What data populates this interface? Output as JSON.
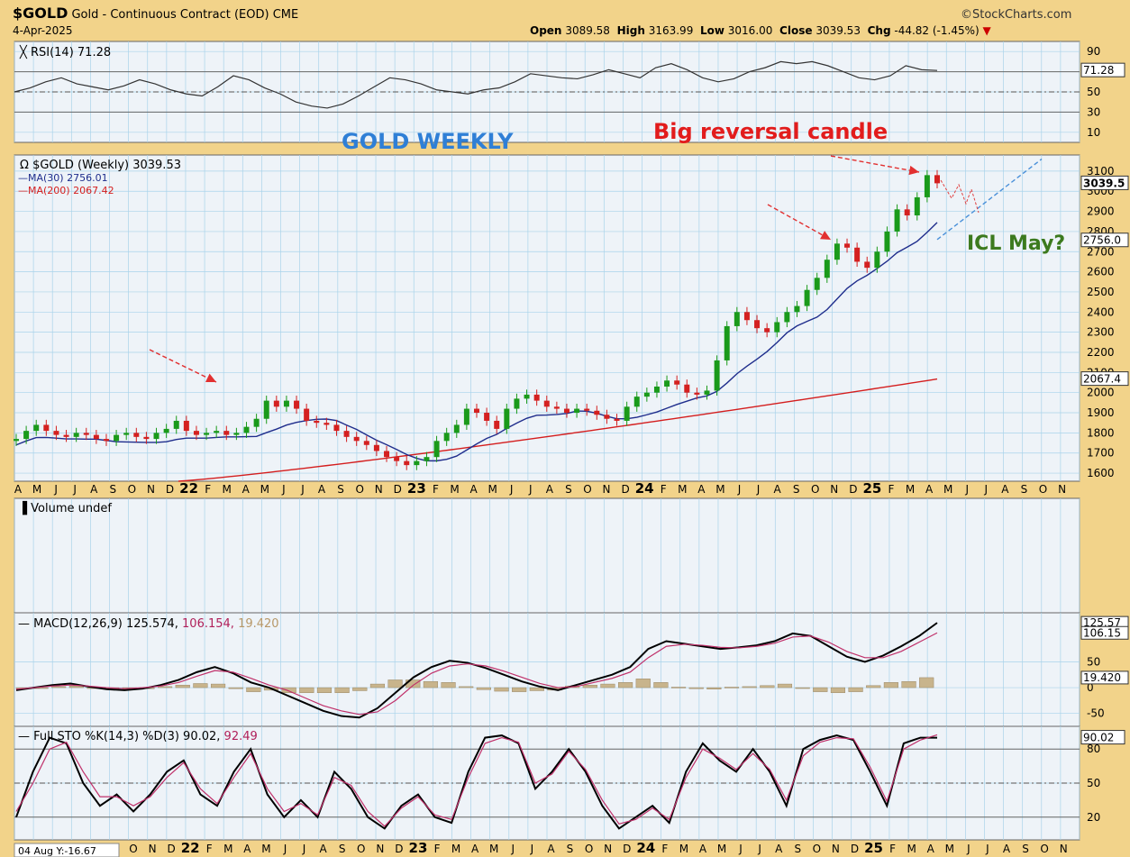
{
  "header": {
    "symbol": "$GOLD",
    "name": "Gold - Continuous Contract (EOD)",
    "exchange": "CME",
    "date": "4-Apr-2025",
    "brand": "©StockCharts.com",
    "ohlc": {
      "open_label": "Open",
      "open": "3089.58",
      "high_label": "High",
      "high": "3163.99",
      "low_label": "Low",
      "low": "3016.00",
      "close_label": "Close",
      "close": "3039.53",
      "chg_label": "Chg",
      "chg": "-44.82 (-1.45%)"
    }
  },
  "colors": {
    "background": "#f2d38a",
    "panel": "#eef3f8",
    "grid": "#a9d3ea",
    "price_up": "#1a9a1a",
    "price_down": "#d42020",
    "ma30": "#1f2d8c",
    "ma200": "#d41e1e",
    "trend": "#4a90d9",
    "annotation_blue": "#2f7fd6",
    "annotation_red": "#e21c1c",
    "annotation_green": "#3c7a1e",
    "histogram": "#c8b48c"
  },
  "annotations": {
    "gold_weekly": "GOLD WEEKLY",
    "big_reversal": "Big reversal candle",
    "icl_may": "ICL May?"
  },
  "x_axis": {
    "top_labels": [
      "A",
      "M",
      "J",
      "J",
      "A",
      "S",
      "O",
      "N",
      "D",
      "22",
      "F",
      "M",
      "A",
      "M",
      "J",
      "J",
      "A",
      "S",
      "O",
      "N",
      "D",
      "23",
      "F",
      "M",
      "A",
      "M",
      "J",
      "J",
      "A",
      "S",
      "O",
      "N",
      "D",
      "24",
      "F",
      "M",
      "A",
      "M",
      "J",
      "J",
      "A",
      "S",
      "O",
      "N",
      "D",
      "25",
      "F",
      "M",
      "A",
      "M",
      "J",
      "J",
      "A",
      "S",
      "O",
      "N"
    ],
    "bottom_labels": [
      "O",
      "N",
      "D",
      "22",
      "F",
      "M",
      "A",
      "M",
      "J",
      "J",
      "A",
      "S",
      "O",
      "N",
      "D",
      "23",
      "F",
      "M",
      "A",
      "M",
      "J",
      "J",
      "A",
      "S",
      "O",
      "N",
      "D",
      "24",
      "F",
      "M",
      "A",
      "M",
      "J",
      "J",
      "A",
      "S",
      "O",
      "N",
      "D",
      "25",
      "F",
      "M",
      "A",
      "M",
      "J",
      "J",
      "A",
      "S",
      "O",
      "N"
    ],
    "status": "04 Aug Y:-16.67"
  },
  "chart_data": [
    {
      "type": "line",
      "panel": "RSI",
      "title": "RSI(14) 71.28",
      "y_ticks": [
        90,
        50,
        30,
        10
      ],
      "ylim": [
        0,
        100
      ],
      "last_label": "71.28",
      "reference_lines": [
        70,
        30
      ],
      "series": [
        {
          "name": "RSI(14)",
          "values": [
            50,
            54,
            60,
            64,
            58,
            55,
            52,
            56,
            62,
            58,
            52,
            48,
            46,
            55,
            66,
            62,
            54,
            48,
            40,
            36,
            34,
            38,
            46,
            55,
            64,
            62,
            58,
            52,
            50,
            48,
            52,
            54,
            60,
            68,
            66,
            64,
            63,
            67,
            72,
            68,
            64,
            74,
            78,
            72,
            64,
            60,
            63,
            70,
            74,
            80,
            78,
            80,
            76,
            70,
            64,
            62,
            66,
            76,
            72,
            71.28
          ]
        }
      ]
    },
    {
      "type": "candlestick",
      "panel": "Price",
      "title": "$GOLD (Weekly) 3039.53",
      "legend": [
        "MA(30) 2756.01",
        "MA(200) 2067.42"
      ],
      "y_ticks": [
        3100,
        3000,
        2900,
        2800,
        2700,
        2600,
        2500,
        2400,
        2300,
        2200,
        2100,
        2000,
        1900,
        1800,
        1700,
        1600
      ],
      "ylim": [
        1560,
        3180
      ],
      "last_labels": [
        "3039.5",
        "2756.0",
        "2067.4"
      ],
      "close": [
        1770,
        1810,
        1840,
        1810,
        1790,
        1780,
        1800,
        1790,
        1770,
        1760,
        1790,
        1800,
        1780,
        1770,
        1800,
        1820,
        1860,
        1810,
        1790,
        1800,
        1810,
        1790,
        1800,
        1830,
        1870,
        1960,
        1930,
        1960,
        1920,
        1860,
        1850,
        1840,
        1810,
        1780,
        1760,
        1740,
        1710,
        1680,
        1660,
        1640,
        1660,
        1680,
        1760,
        1800,
        1840,
        1920,
        1900,
        1860,
        1820,
        1920,
        1970,
        1990,
        1960,
        1930,
        1920,
        1900,
        1920,
        1910,
        1890,
        1870,
        1860,
        1930,
        1980,
        2000,
        2030,
        2060,
        2040,
        2000,
        1990,
        2010,
        2160,
        2330,
        2400,
        2360,
        2320,
        2300,
        2350,
        2400,
        2430,
        2510,
        2570,
        2660,
        2740,
        2720,
        2650,
        2620,
        2700,
        2800,
        2910,
        2880,
        2970,
        3080,
        3039.53
      ],
      "series": [
        {
          "name": "MA(30)",
          "last": 2756.01
        },
        {
          "name": "MA(200)",
          "last": 2067.42
        }
      ]
    },
    {
      "type": "bar",
      "panel": "Volume",
      "title": "Volume undef",
      "values": []
    },
    {
      "type": "line",
      "panel": "MACD",
      "title": "MACD(12,26,9)",
      "values_text": {
        "macd": "125.574",
        "signal": "106.154",
        "histogram": "19.420"
      },
      "y_ticks": [
        50,
        0,
        -50
      ],
      "ylim": [
        -75,
        145
      ],
      "last_labels": [
        "125.57",
        "106.15",
        "19.420"
      ],
      "series": [
        {
          "name": "MACD",
          "values": [
            -5,
            0,
            5,
            8,
            2,
            -3,
            -5,
            -2,
            5,
            15,
            30,
            40,
            28,
            10,
            0,
            -15,
            -30,
            -45,
            -55,
            -58,
            -40,
            -10,
            20,
            40,
            52,
            48,
            38,
            25,
            12,
            2,
            -5,
            5,
            15,
            25,
            40,
            75,
            90,
            85,
            80,
            75,
            78,
            82,
            90,
            105,
            100,
            80,
            60,
            50,
            62,
            80,
            100,
            125.574
          ]
        },
        {
          "name": "Signal",
          "values": [
            -3,
            0,
            3,
            5,
            3,
            0,
            -2,
            0,
            3,
            10,
            22,
            33,
            30,
            18,
            5,
            -5,
            -20,
            -35,
            -45,
            -52,
            -47,
            -25,
            5,
            28,
            42,
            46,
            42,
            32,
            20,
            8,
            0,
            2,
            10,
            18,
            30,
            58,
            80,
            84,
            82,
            78,
            77,
            80,
            86,
            98,
            100,
            88,
            70,
            58,
            58,
            70,
            88,
            106.154
          ]
        }
      ],
      "histogram": [
        -2,
        0,
        2,
        3,
        -1,
        -3,
        -3,
        -2,
        2,
        5,
        8,
        7,
        -2,
        -8,
        -5,
        -10,
        -10,
        -10,
        -10,
        -6,
        7,
        15,
        15,
        12,
        10,
        2,
        -4,
        -7,
        -8,
        -6,
        -5,
        3,
        5,
        7,
        10,
        17,
        10,
        1,
        -2,
        -3,
        1,
        2,
        4,
        7,
        0,
        -8,
        -10,
        -8,
        4,
        10,
        12,
        19.42
      ]
    },
    {
      "type": "line",
      "panel": "Stochastic",
      "title": "Full STO %K(14,3) %D(3)",
      "values_text": {
        "k": "90.02",
        "d": "92.49"
      },
      "y_ticks": [
        80,
        50,
        20
      ],
      "ylim": [
        0,
        100
      ],
      "last_label": "90.02",
      "series": [
        {
          "name": "%K",
          "values": [
            20,
            60,
            90,
            85,
            50,
            30,
            40,
            25,
            40,
            60,
            70,
            40,
            30,
            60,
            80,
            40,
            20,
            35,
            20,
            60,
            45,
            20,
            10,
            30,
            40,
            20,
            15,
            60,
            90,
            92,
            85,
            45,
            60,
            80,
            60,
            30,
            10,
            20,
            30,
            15,
            60,
            85,
            70,
            60,
            80,
            60,
            30,
            80,
            88,
            92,
            88,
            60,
            30,
            85,
            90,
            90.02
          ]
        },
        {
          "name": "%D",
          "values": [
            25,
            50,
            80,
            86,
            60,
            38,
            38,
            30,
            38,
            55,
            68,
            45,
            32,
            55,
            76,
            45,
            25,
            32,
            22,
            55,
            48,
            25,
            12,
            28,
            38,
            22,
            18,
            55,
            85,
            90,
            86,
            50,
            58,
            78,
            62,
            35,
            14,
            18,
            28,
            18,
            55,
            80,
            72,
            62,
            76,
            62,
            35,
            74,
            86,
            90,
            89,
            64,
            34,
            80,
            88,
            92.49
          ]
        }
      ]
    }
  ]
}
